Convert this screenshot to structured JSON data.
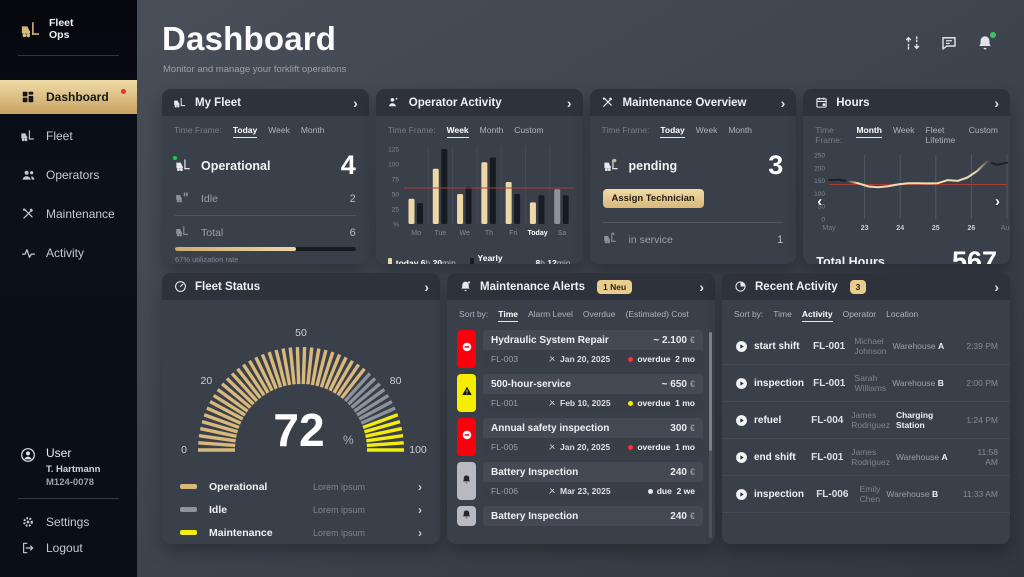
{
  "colors": {
    "accent_gold": "#d9b87c",
    "gold_light": "#ecd8a6",
    "bright_yellow": "#f2ec10",
    "alert_red": "#fb000c",
    "idle_gray": "#8d939c",
    "bar_dark": "#171b22",
    "ref_line_red": "#a93c36",
    "positive_green": "#2ebd59",
    "badge_gray": "#b7bbc1"
  },
  "app": {
    "logo_line1": "Fleet",
    "logo_line2": "Ops"
  },
  "sidebar": {
    "items": [
      {
        "label": "Dashboard",
        "icon": "grid-icon",
        "active": true,
        "dot": true
      },
      {
        "label": "Fleet",
        "icon": "forklift-icon"
      },
      {
        "label": "Operators",
        "icon": "operators-icon"
      },
      {
        "label": "Maintenance",
        "icon": "tools-icon"
      },
      {
        "label": "Activity",
        "icon": "activity-icon"
      }
    ],
    "user": {
      "icon": "user-icon",
      "label": "User",
      "name": "T. Hartmann",
      "id": "M124-0078"
    },
    "footer": [
      {
        "label": "Settings",
        "icon": "gear-icon"
      },
      {
        "label": "Logout",
        "icon": "logout-icon"
      }
    ]
  },
  "header": {
    "title": "Dashboard",
    "subtitle": "Monitor and manage your forklift operations"
  },
  "cards": {
    "my_fleet": {
      "title": "My Fleet",
      "time_frame_label": "Time Frame:",
      "time_frames": [
        "Today",
        "Week",
        "Month"
      ],
      "active_time_frame": "Today",
      "stats": [
        {
          "label": "Operational",
          "value": "4"
        },
        {
          "label": "Idle",
          "value": "2"
        },
        {
          "label": "Total",
          "value": "6"
        }
      ],
      "utilization": {
        "percent": 67,
        "caption": "67% utilization rate"
      }
    },
    "operator_activity": {
      "title": "Operator Activity",
      "time_frame_label": "Time Frame:",
      "time_frames": [
        "Week",
        "Month",
        "Custom"
      ],
      "active_time_frame": "Week",
      "chart_data": {
        "type": "bar",
        "categories": [
          "Mo",
          "Tue",
          "We",
          "Th",
          "Fri",
          "Today",
          "Sa"
        ],
        "highlight_category": "Today",
        "muted_category": "Sa",
        "series": [
          {
            "name": "today",
            "values": [
              42,
              92,
              50,
              103,
              70,
              36,
              58
            ]
          },
          {
            "name": "Yearly average",
            "values": [
              35,
              125,
              62,
              111,
              50,
              48,
              48
            ]
          }
        ],
        "yticks": [
          125,
          100,
          75,
          50,
          25,
          "%"
        ],
        "ymax": 130,
        "ref_line": 60
      },
      "legend": [
        {
          "label": "today",
          "v1": "6",
          "u1": "h",
          "v2": "20",
          "u2": "min"
        },
        {
          "label": "Yearly average",
          "v1": "8",
          "u1": "h",
          "v2": "12",
          "u2": "min"
        }
      ]
    },
    "maintenance_overview": {
      "title": "Maintenance Overview",
      "time_frame_label": "Time Frame:",
      "time_frames": [
        "Today",
        "Week",
        "Month"
      ],
      "active_time_frame": "Today",
      "pending": {
        "label": "pending",
        "value": "3"
      },
      "action_button": "Assign Technician",
      "in_service": {
        "label": "in service",
        "value": "1"
      }
    },
    "hours": {
      "title": "Hours",
      "time_frame_label": "Time Frame:",
      "time_frames": [
        "Month",
        "Week",
        "Fleet Lifetime",
        "Custom"
      ],
      "active_time_frame": "Month",
      "chart_data": {
        "type": "line",
        "x_labels": [
          "May",
          "23",
          "24",
          "25",
          "26",
          "Aug"
        ],
        "yticks": [
          250,
          200,
          150,
          100,
          50,
          0
        ],
        "ymax": 250,
        "ref_line": 135,
        "points": [
          152,
          154,
          147,
          139,
          127,
          124,
          128,
          135,
          140,
          140,
          139,
          140,
          152,
          149,
          162,
          188,
          225,
          212,
          220
        ]
      },
      "total_label": "Total Hours",
      "total_value": "567"
    },
    "fleet_status": {
      "title": "Fleet Status",
      "value": "72",
      "unit": "%",
      "chart_data": {
        "type": "gauge",
        "value": 72,
        "min": 0,
        "max": 100,
        "scale_labels": [
          0,
          20,
          50,
          80,
          100
        ],
        "segments": [
          {
            "name": "Operational",
            "to": 72,
            "color": "#d9b87c"
          },
          {
            "name": "Idle",
            "to": 87,
            "color": "#8d939c"
          },
          {
            "name": "Maintenance",
            "to": 100,
            "color": "#f2ec10"
          }
        ]
      },
      "legend": [
        {
          "label": "Operational",
          "desc": "Lorem ipsum",
          "color": "#d9b87c"
        },
        {
          "label": "Idle",
          "desc": "Lorem ipsum",
          "color": "#8d939c"
        },
        {
          "label": "Maintenance",
          "desc": "Lorem ipsum",
          "color": "#f2ec10"
        }
      ]
    },
    "maintenance_alerts": {
      "title": "Maintenance Alerts",
      "badge": "1 Neu",
      "sort_label": "Sort by:",
      "sort_options": [
        "Time",
        "Alarm Level",
        "Overdue",
        "(Estimated) Cost"
      ],
      "active_sort": "Time",
      "items": [
        {
          "severity": "critical",
          "badge_color": "#fb000c",
          "badge_icon": "no-entry-icon",
          "title": "Hydraulic System Repair",
          "vehicle": "FL-003",
          "date": "Jan 20, 2025",
          "status": "overdue",
          "status_dot": "#ff2d2d",
          "duration": "2 mo",
          "cost": "~  2.100",
          "currency": "€"
        },
        {
          "severity": "warning",
          "badge_color": "#f6ee00",
          "badge_icon": "warning-icon",
          "title": "500-hour-service",
          "vehicle": "FL-001",
          "date": "Feb 10, 2025",
          "status": "overdue",
          "status_dot": "#f6ee00",
          "duration": "1 mo",
          "cost": "~  650",
          "currency": "€"
        },
        {
          "severity": "critical",
          "badge_color": "#fb000c",
          "badge_icon": "no-entry-icon",
          "title": "Annual safety inspection",
          "vehicle": "FL-005",
          "date": "Jan 20, 2025",
          "status": "overdue",
          "status_dot": "#ff2d2d",
          "duration": "1 mo",
          "cost": "300",
          "currency": "€"
        },
        {
          "severity": "info",
          "badge_color": "#b7bbc1",
          "badge_icon": "bell-small-icon",
          "title": "Battery Inspection",
          "vehicle": "FL-006",
          "date": "Mar 23, 2025",
          "status": "due",
          "status_dot": "#e8eaee",
          "duration": "2 we",
          "cost": "240",
          "currency": "€"
        },
        {
          "severity": "info",
          "badge_color": "#b7bbc1",
          "badge_icon": "bell-small-icon",
          "title": "Battery Inspection",
          "vehicle": "",
          "date": "",
          "status": "",
          "status_dot": "",
          "duration": "",
          "cost": "240",
          "currency": "€"
        }
      ]
    },
    "recent_activity": {
      "title": "Recent Activity",
      "badge": "3",
      "sort_label": "Sort by:",
      "sort_options": [
        "Time",
        "Activity",
        "Operator",
        "Location"
      ],
      "active_sort": "Activity",
      "items": [
        {
          "action": "start shift",
          "vehicle": "FL-001",
          "operator": "Michael Johnson",
          "location": "Warehouse",
          "location_suffix": "A",
          "location_bold": false,
          "time": "2:39 PM"
        },
        {
          "action": "inspection",
          "vehicle": "FL-001",
          "operator": "Sarah Williams",
          "location": "Warehouse",
          "location_suffix": "B",
          "location_bold": false,
          "time": "2:00 PM"
        },
        {
          "action": "refuel",
          "vehicle": "FL-004",
          "operator": "James Rodriguez",
          "location": "Charging Station",
          "location_suffix": "",
          "location_bold": true,
          "time": "1:24 PM"
        },
        {
          "action": "end shift",
          "vehicle": "FL-001",
          "operator": "James Rodriguez",
          "location": "Warehouse",
          "location_suffix": "A",
          "location_bold": false,
          "time": "11:58 AM"
        },
        {
          "action": "inspection",
          "vehicle": "FL-006",
          "operator": "Emily Chen",
          "location": "Warehouse",
          "location_suffix": "B",
          "location_bold": false,
          "time": "11:33 AM"
        }
      ]
    }
  }
}
